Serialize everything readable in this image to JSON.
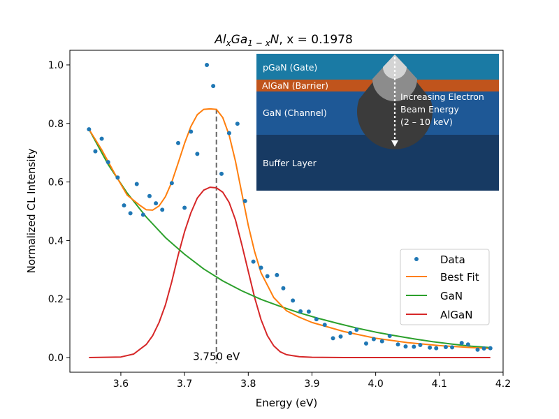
{
  "chart_data": {
    "type": "scatter",
    "title": {
      "base": "Al",
      "sub1": "x",
      "mid": "Ga",
      "sub2": "1 − x",
      "end": "N",
      "suffix": ", x = 0.1978"
    },
    "xlabel": "Energy (eV)",
    "ylabel": "Normalized CL Intensity",
    "xlim": [
      3.52,
      4.2
    ],
    "ylim": [
      -0.05,
      1.05
    ],
    "xticks": [
      3.6,
      3.7,
      3.8,
      3.9,
      4.0,
      4.1,
      4.2
    ],
    "xtick_labels": [
      "3.6",
      "3.7",
      "3.8",
      "3.9",
      "4.0",
      "4.1",
      "4.2"
    ],
    "yticks": [
      0.0,
      0.2,
      0.4,
      0.6,
      0.8,
      1.0
    ],
    "ytick_labels": [
      "0.0",
      "0.2",
      "0.4",
      "0.6",
      "0.8",
      "1.0"
    ],
    "grid": false,
    "legend_position": "lower-right",
    "series": [
      {
        "name": "Data",
        "kind": "points",
        "color": "#1f77b4",
        "x": [
          3.55,
          3.56,
          3.57,
          3.58,
          3.595,
          3.605,
          3.615,
          3.625,
          3.635,
          3.645,
          3.655,
          3.665,
          3.68,
          3.69,
          3.7,
          3.71,
          3.72,
          3.735,
          3.745,
          3.758,
          3.77,
          3.783,
          3.795,
          3.808,
          3.82,
          3.83,
          3.845,
          3.855,
          3.87,
          3.882,
          3.895,
          3.907,
          3.92,
          3.933,
          3.945,
          3.96,
          3.97,
          3.985,
          3.997,
          4.01,
          4.022,
          4.035,
          4.047,
          4.06,
          4.07,
          4.085,
          4.095,
          4.11,
          4.12,
          4.135,
          4.145,
          4.16,
          4.17,
          4.18
        ],
        "y": [
          0.78,
          0.705,
          0.748,
          0.668,
          0.615,
          0.52,
          0.493,
          0.593,
          0.488,
          0.552,
          0.527,
          0.505,
          0.596,
          0.733,
          0.512,
          0.772,
          0.696,
          1.0,
          0.928,
          0.628,
          0.767,
          0.799,
          0.535,
          0.328,
          0.307,
          0.278,
          0.282,
          0.237,
          0.195,
          0.158,
          0.157,
          0.131,
          0.112,
          0.066,
          0.072,
          0.084,
          0.095,
          0.048,
          0.063,
          0.056,
          0.074,
          0.045,
          0.038,
          0.037,
          0.043,
          0.034,
          0.032,
          0.036,
          0.035,
          0.05,
          0.045,
          0.027,
          0.031,
          0.032
        ]
      },
      {
        "name": "Best Fit",
        "kind": "line",
        "color": "#ff7f0e",
        "x": [
          3.55,
          3.57,
          3.59,
          3.61,
          3.63,
          3.64,
          3.65,
          3.66,
          3.67,
          3.68,
          3.69,
          3.7,
          3.71,
          3.72,
          3.73,
          3.74,
          3.75,
          3.76,
          3.77,
          3.78,
          3.79,
          3.8,
          3.81,
          3.82,
          3.84,
          3.86,
          3.88,
          3.9,
          3.95,
          4.0,
          4.05,
          4.1,
          4.15,
          4.18
        ],
        "y": [
          0.78,
          0.71,
          0.63,
          0.555,
          0.52,
          0.505,
          0.504,
          0.518,
          0.55,
          0.6,
          0.665,
          0.732,
          0.79,
          0.83,
          0.848,
          0.85,
          0.848,
          0.82,
          0.76,
          0.67,
          0.56,
          0.452,
          0.362,
          0.29,
          0.205,
          0.16,
          0.138,
          0.12,
          0.089,
          0.066,
          0.051,
          0.041,
          0.034,
          0.031
        ]
      },
      {
        "name": "GaN",
        "kind": "line",
        "color": "#2ca02c",
        "x": [
          3.55,
          3.58,
          3.61,
          3.64,
          3.67,
          3.7,
          3.73,
          3.76,
          3.79,
          3.82,
          3.85,
          3.88,
          3.91,
          3.94,
          3.97,
          4.0,
          4.03,
          4.06,
          4.09,
          4.12,
          4.15,
          4.18
        ],
        "y": [
          0.78,
          0.66,
          0.562,
          0.48,
          0.41,
          0.353,
          0.303,
          0.262,
          0.228,
          0.199,
          0.175,
          0.153,
          0.134,
          0.117,
          0.101,
          0.087,
          0.075,
          0.064,
          0.054,
          0.046,
          0.039,
          0.034
        ]
      },
      {
        "name": "AlGaN",
        "kind": "line",
        "color": "#d62728",
        "x": [
          3.55,
          3.6,
          3.62,
          3.64,
          3.65,
          3.66,
          3.67,
          3.68,
          3.69,
          3.7,
          3.71,
          3.72,
          3.73,
          3.74,
          3.75,
          3.76,
          3.77,
          3.78,
          3.79,
          3.8,
          3.81,
          3.82,
          3.83,
          3.84,
          3.85,
          3.86,
          3.88,
          3.9,
          3.95,
          4.0,
          4.18
        ],
        "y": [
          0.0,
          0.002,
          0.012,
          0.045,
          0.075,
          0.12,
          0.18,
          0.26,
          0.35,
          0.43,
          0.495,
          0.545,
          0.572,
          0.582,
          0.58,
          0.565,
          0.53,
          0.47,
          0.385,
          0.295,
          0.205,
          0.13,
          0.075,
          0.04,
          0.02,
          0.01,
          0.003,
          0.001,
          0.0,
          0.0,
          0.0
        ]
      }
    ],
    "annotations": [
      {
        "type": "vline",
        "x": 3.75,
        "y_from": -0.02,
        "y_to": 0.85,
        "style": "dashed",
        "color": "#666666",
        "label": "3.750 eV"
      }
    ],
    "inset": {
      "layers": [
        {
          "label": "pGaN (Gate)",
          "color": "#1a7aa4"
        },
        {
          "label": "AlGaN (Barrier)",
          "color": "#c0541c"
        },
        {
          "label": "GaN (Channel)",
          "color": "#1e5896"
        },
        {
          "label": "Buffer Layer",
          "color": "#173a63"
        }
      ],
      "caption_lines": [
        "Increasing Electron",
        "Beam Energy",
        "(2 – 10 keV)"
      ]
    }
  }
}
